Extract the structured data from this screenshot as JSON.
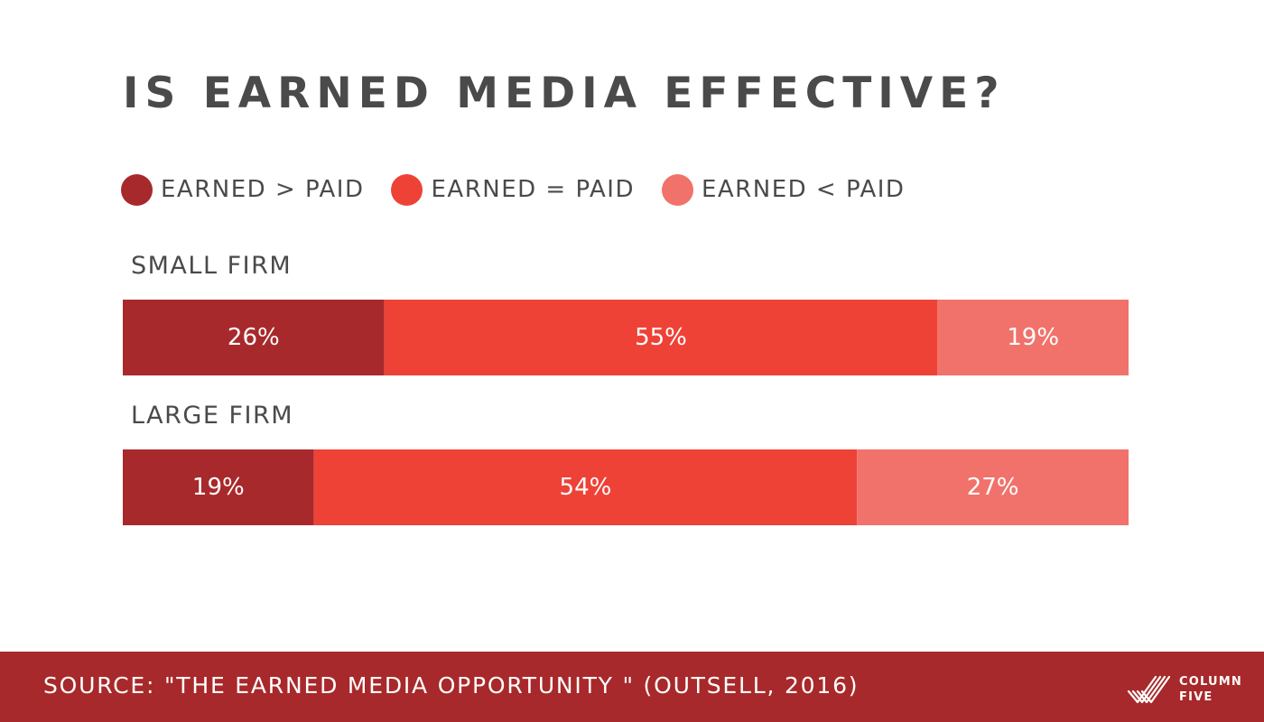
{
  "title": "IS EARNED MEDIA EFFECTIVE?",
  "legend": [
    {
      "label": "EARNED > PAID",
      "color": "#a8292b"
    },
    {
      "label": "EARNED = PAID",
      "color": "#ee4237"
    },
    {
      "label": "EARNED < PAID",
      "color": "#f1726b"
    }
  ],
  "chart_data": {
    "type": "bar",
    "orientation": "horizontal",
    "stacked": true,
    "normalized": true,
    "categories": [
      "SMALL FIRM",
      "LARGE FIRM"
    ],
    "series": [
      {
        "name": "EARNED > PAID",
        "values": [
          26,
          19
        ],
        "color": "#a8292b"
      },
      {
        "name": "EARNED = PAID",
        "values": [
          55,
          54
        ],
        "color": "#ee4237"
      },
      {
        "name": "EARNED < PAID",
        "values": [
          19,
          27
        ],
        "color": "#f1726b"
      }
    ],
    "data_labels": [
      [
        "26%",
        "55%",
        "19%"
      ],
      [
        "19%",
        "54%",
        "27%"
      ]
    ],
    "unit": "%",
    "title": "IS EARNED MEDIA EFFECTIVE?",
    "legend_position": "top-left",
    "grid": false
  },
  "footer": {
    "source": "SOURCE: \"THE EARNED MEDIA OPPORTUNITY \" (OUTSELL, 2016)",
    "logo_text_line1": "COLUMN",
    "logo_text_line2": "FIVE",
    "background": "#a8292b"
  }
}
